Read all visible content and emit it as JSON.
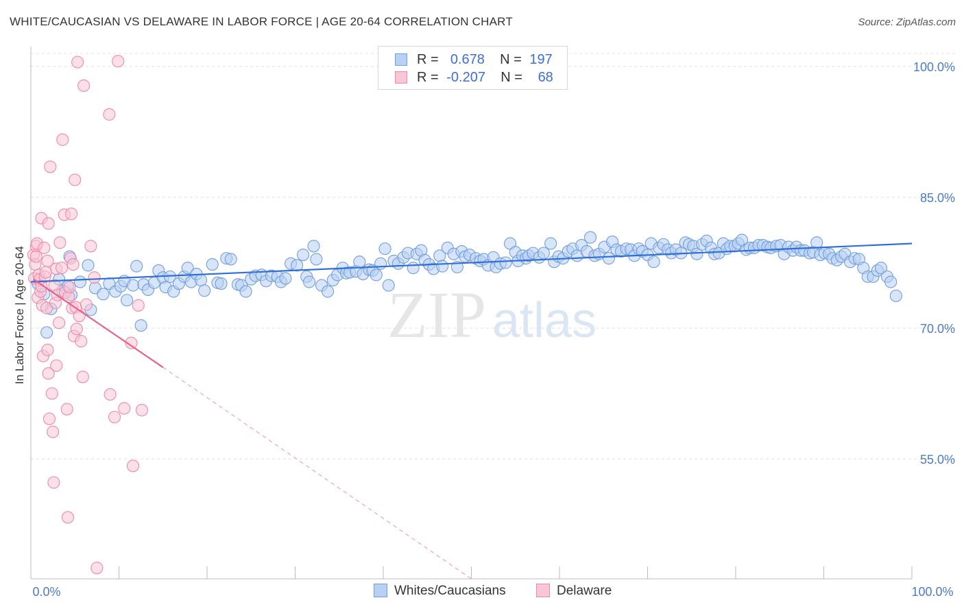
{
  "title": "WHITE/CAUCASIAN VS DELAWARE IN LABOR FORCE | AGE 20-64 CORRELATION CHART",
  "source": "Source: ZipAtlas.com",
  "watermark": {
    "zip": "ZIP",
    "atlas": "atlas"
  },
  "legend": {
    "rows": [
      {
        "r_label": "R =",
        "r_value": "0.678",
        "n_label": "N =",
        "n_value": "197",
        "color": "#6f9de0",
        "fill": "#b8d0f2"
      },
      {
        "r_label": "R =",
        "r_value": "-0.207",
        "n_label": "N =",
        "n_value": "68",
        "color": "#ee88a8",
        "fill": "#f8c6d6"
      }
    ]
  },
  "bottom_legend": [
    {
      "label": "Whites/Caucasians",
      "color": "#6f9de0",
      "fill": "#b8d0f2"
    },
    {
      "label": "Delaware",
      "color": "#ee88a8",
      "fill": "#f8c6d6"
    }
  ],
  "chart_data": {
    "type": "scatter",
    "title": "WHITE/CAUCASIAN VS DELAWARE IN LABOR FORCE | AGE 20-64 CORRELATION CHART",
    "xlabel": "",
    "ylabel": "In Labor Force | Age 20-64",
    "xlim": [
      0,
      100
    ],
    "ylim": [
      40,
      101.5
    ],
    "x_tick_labels": [
      "0.0%",
      "100.0%"
    ],
    "y_ticks": [
      {
        "value": 100,
        "label": "100.0%"
      },
      {
        "value": 85,
        "label": "85.0%"
      },
      {
        "value": 70,
        "label": "70.0%"
      },
      {
        "value": 55,
        "label": "55.0%"
      }
    ],
    "grid": true,
    "series": [
      {
        "name": "Whites/Caucasians",
        "color": "#6f9de0",
        "fill": "#b8d0f2",
        "trend": {
          "x": [
            0,
            100
          ],
          "y": [
            75.3,
            79.7
          ],
          "style": "solid"
        },
        "points": [
          [
            0.8,
            75.1
          ],
          [
            1.5,
            73.9
          ],
          [
            1.8,
            69.5
          ],
          [
            2.3,
            72.2
          ],
          [
            3.2,
            75.6
          ],
          [
            3.6,
            74.3
          ],
          [
            4.2,
            74.8
          ],
          [
            4.6,
            73.8
          ],
          [
            4.4,
            78.2
          ],
          [
            5.6,
            75.3
          ],
          [
            6.5,
            77.2
          ],
          [
            6.8,
            72.1
          ],
          [
            7.3,
            74.6
          ],
          [
            8.2,
            73.9
          ],
          [
            8.9,
            75.1
          ],
          [
            9.6,
            74.2
          ],
          [
            10.2,
            74.8
          ],
          [
            10.6,
            75.4
          ],
          [
            10.9,
            73.2
          ],
          [
            11.6,
            74.9
          ],
          [
            12.0,
            77.1
          ],
          [
            12.5,
            70.3
          ],
          [
            12.8,
            75.0
          ],
          [
            13.3,
            74.4
          ],
          [
            14.0,
            75.2
          ],
          [
            14.5,
            76.6
          ],
          [
            15.0,
            75.8
          ],
          [
            15.3,
            74.7
          ],
          [
            15.8,
            75.9
          ],
          [
            16.2,
            74.2
          ],
          [
            16.8,
            75.1
          ],
          [
            17.4,
            75.9
          ],
          [
            17.8,
            76.9
          ],
          [
            18.2,
            75.3
          ],
          [
            18.8,
            76.2
          ],
          [
            19.3,
            75.5
          ],
          [
            19.7,
            74.3
          ],
          [
            20.6,
            77.3
          ],
          [
            21.2,
            75.2
          ],
          [
            21.6,
            75.1
          ],
          [
            22.2,
            78.0
          ],
          [
            22.7,
            77.9
          ],
          [
            23.5,
            75.0
          ],
          [
            23.9,
            74.9
          ],
          [
            24.4,
            74.2
          ],
          [
            25.0,
            75.6
          ],
          [
            25.5,
            76.0
          ],
          [
            26.2,
            76.1
          ],
          [
            26.7,
            75.4
          ],
          [
            27.3,
            76.0
          ],
          [
            28.0,
            75.9
          ],
          [
            28.4,
            75.3
          ],
          [
            28.9,
            75.7
          ],
          [
            29.5,
            77.4
          ],
          [
            30.2,
            77.2
          ],
          [
            30.9,
            78.4
          ],
          [
            31.3,
            75.9
          ],
          [
            31.6,
            75.3
          ],
          [
            32.1,
            79.4
          ],
          [
            32.4,
            77.9
          ],
          [
            33.0,
            74.9
          ],
          [
            33.7,
            74.2
          ],
          [
            34.3,
            75.5
          ],
          [
            34.8,
            76.1
          ],
          [
            35.4,
            76.9
          ],
          [
            35.8,
            76.3
          ],
          [
            36.2,
            76.4
          ],
          [
            36.9,
            76.5
          ],
          [
            37.3,
            77.6
          ],
          [
            37.7,
            76.2
          ],
          [
            38.4,
            76.7
          ],
          [
            38.8,
            76.6
          ],
          [
            39.2,
            76.1
          ],
          [
            39.7,
            77.4
          ],
          [
            40.2,
            79.1
          ],
          [
            40.6,
            74.9
          ],
          [
            41.2,
            77.7
          ],
          [
            41.7,
            77.4
          ],
          [
            42.3,
            78.1
          ],
          [
            42.8,
            78.6
          ],
          [
            43.4,
            76.9
          ],
          [
            43.8,
            78.5
          ],
          [
            44.3,
            78.9
          ],
          [
            44.7,
            77.8
          ],
          [
            45.2,
            77.3
          ],
          [
            45.7,
            76.8
          ],
          [
            46.4,
            78.3
          ],
          [
            46.7,
            77.1
          ],
          [
            47.3,
            79.2
          ],
          [
            48.0,
            78.5
          ],
          [
            48.4,
            77.0
          ],
          [
            48.9,
            78.8
          ],
          [
            49.3,
            78.2
          ],
          [
            49.8,
            78.4
          ],
          [
            50.5,
            78.0
          ],
          [
            51.0,
            77.7
          ],
          [
            51.4,
            77.9
          ],
          [
            51.9,
            77.2
          ],
          [
            52.5,
            78.1
          ],
          [
            52.8,
            77.0
          ],
          [
            53.3,
            77.4
          ],
          [
            53.9,
            77.5
          ],
          [
            54.4,
            79.7
          ],
          [
            55.0,
            78.7
          ],
          [
            55.3,
            77.7
          ],
          [
            55.8,
            78.3
          ],
          [
            56.2,
            78.0
          ],
          [
            56.5,
            78.3
          ],
          [
            57.0,
            78.6
          ],
          [
            57.7,
            78.1
          ],
          [
            58.2,
            78.6
          ],
          [
            59.0,
            79.7
          ],
          [
            59.4,
            77.6
          ],
          [
            59.9,
            78.2
          ],
          [
            60.4,
            78.0
          ],
          [
            61.0,
            78.8
          ],
          [
            61.5,
            79.1
          ],
          [
            62.0,
            78.3
          ],
          [
            62.5,
            79.5
          ],
          [
            63.1,
            78.8
          ],
          [
            63.5,
            80.4
          ],
          [
            64.0,
            78.3
          ],
          [
            64.5,
            78.5
          ],
          [
            65.1,
            79.3
          ],
          [
            65.6,
            78.0
          ],
          [
            66.0,
            79.9
          ],
          [
            66.5,
            79.0
          ],
          [
            67.0,
            78.8
          ],
          [
            67.6,
            79.1
          ],
          [
            68.1,
            79.0
          ],
          [
            68.5,
            78.3
          ],
          [
            69.0,
            79.1
          ],
          [
            69.4,
            78.8
          ],
          [
            70.0,
            78.4
          ],
          [
            70.4,
            79.7
          ],
          [
            70.7,
            77.6
          ],
          [
            71.3,
            79.2
          ],
          [
            71.8,
            79.6
          ],
          [
            72.3,
            79.0
          ],
          [
            72.7,
            78.6
          ],
          [
            73.2,
            79.0
          ],
          [
            73.8,
            78.6
          ],
          [
            74.3,
            79.8
          ],
          [
            74.7,
            79.6
          ],
          [
            75.2,
            79.4
          ],
          [
            75.6,
            78.5
          ],
          [
            76.2,
            79.6
          ],
          [
            76.7,
            80.0
          ],
          [
            77.2,
            79.2
          ],
          [
            77.6,
            78.5
          ],
          [
            78.1,
            78.6
          ],
          [
            78.6,
            79.7
          ],
          [
            79.0,
            79.1
          ],
          [
            79.4,
            79.4
          ],
          [
            79.9,
            79.4
          ],
          [
            80.3,
            79.7
          ],
          [
            80.7,
            80.1
          ],
          [
            81.2,
            79.0
          ],
          [
            81.6,
            79.2
          ],
          [
            82.1,
            79.2
          ],
          [
            82.6,
            79.5
          ],
          [
            83.1,
            79.5
          ],
          [
            83.6,
            79.3
          ],
          [
            84.0,
            79.2
          ],
          [
            84.6,
            79.4
          ],
          [
            85.1,
            79.5
          ],
          [
            85.5,
            78.5
          ],
          [
            86.0,
            79.3
          ],
          [
            86.5,
            78.9
          ],
          [
            86.9,
            79.3
          ],
          [
            87.4,
            78.9
          ],
          [
            87.8,
            78.9
          ],
          [
            88.4,
            78.6
          ],
          [
            88.8,
            78.7
          ],
          [
            89.2,
            79.8
          ],
          [
            89.6,
            78.4
          ],
          [
            90.1,
            78.6
          ],
          [
            90.6,
            78.5
          ],
          [
            91.0,
            78.0
          ],
          [
            91.5,
            77.8
          ],
          [
            92.0,
            78.2
          ],
          [
            92.4,
            78.5
          ],
          [
            93.0,
            77.6
          ],
          [
            93.5,
            78.0
          ],
          [
            94.0,
            77.9
          ],
          [
            94.5,
            76.9
          ],
          [
            95.0,
            75.9
          ],
          [
            95.6,
            75.9
          ],
          [
            96.1,
            76.6
          ],
          [
            96.5,
            76.9
          ],
          [
            97.2,
            75.9
          ],
          [
            97.6,
            75.3
          ],
          [
            98.2,
            73.7
          ]
        ]
      },
      {
        "name": "Delaware",
        "color": "#ee88a8",
        "fill": "#f8c6d6",
        "trend": {
          "x": [
            0.3,
            15
          ],
          "y": [
            75.6,
            65.5
          ],
          "style": "solid"
        },
        "trend_extension": {
          "x": [
            15,
            50
          ],
          "y": [
            65.5,
            40
          ],
          "style": "dashed"
        },
        "points": [
          [
            0.3,
            78.4
          ],
          [
            0.4,
            75.7
          ],
          [
            0.5,
            77.3
          ],
          [
            0.6,
            79.4
          ],
          [
            0.6,
            78.2
          ],
          [
            0.7,
            79.7
          ],
          [
            0.8,
            73.5
          ],
          [
            0.9,
            76.1
          ],
          [
            1.0,
            75.6
          ],
          [
            1.1,
            74.2
          ],
          [
            1.2,
            82.6
          ],
          [
            1.2,
            74.8
          ],
          [
            1.3,
            72.6
          ],
          [
            1.4,
            66.8
          ],
          [
            1.5,
            79.2
          ],
          [
            1.6,
            75.9
          ],
          [
            1.7,
            76.4
          ],
          [
            1.8,
            72.3
          ],
          [
            1.9,
            67.5
          ],
          [
            1.9,
            77.7
          ],
          [
            2.0,
            82.0
          ],
          [
            2.0,
            64.8
          ],
          [
            2.1,
            59.6
          ],
          [
            2.2,
            88.5
          ],
          [
            2.4,
            62.5
          ],
          [
            2.5,
            58.1
          ],
          [
            2.6,
            52.3
          ],
          [
            2.7,
            74.9
          ],
          [
            2.8,
            72.9
          ],
          [
            2.9,
            76.8
          ],
          [
            2.9,
            65.7
          ],
          [
            3.0,
            73.8
          ],
          [
            3.2,
            70.6
          ],
          [
            3.3,
            79.8
          ],
          [
            3.5,
            76.9
          ],
          [
            3.6,
            91.6
          ],
          [
            3.8,
            83.0
          ],
          [
            3.9,
            74.1
          ],
          [
            4.1,
            60.7
          ],
          [
            4.2,
            48.3
          ],
          [
            4.3,
            73.6
          ],
          [
            4.4,
            74.7
          ],
          [
            4.5,
            78.0
          ],
          [
            4.6,
            83.1
          ],
          [
            4.7,
            72.3
          ],
          [
            4.8,
            77.3
          ],
          [
            4.9,
            69.1
          ],
          [
            5.0,
            87.0
          ],
          [
            5.1,
            72.4
          ],
          [
            5.2,
            69.9
          ],
          [
            5.3,
            100.5
          ],
          [
            5.5,
            71.4
          ],
          [
            5.7,
            68.5
          ],
          [
            5.9,
            64.4
          ],
          [
            6.0,
            97.8
          ],
          [
            6.3,
            72.7
          ],
          [
            6.8,
            79.4
          ],
          [
            7.2,
            75.8
          ],
          [
            7.5,
            42.5
          ],
          [
            8.9,
            94.5
          ],
          [
            9.0,
            62.4
          ],
          [
            9.5,
            59.8
          ],
          [
            9.9,
            100.6
          ],
          [
            10.6,
            60.8
          ],
          [
            11.4,
            68.3
          ],
          [
            11.6,
            54.2
          ],
          [
            12.2,
            72.6
          ],
          [
            12.6,
            60.6
          ]
        ]
      }
    ]
  }
}
